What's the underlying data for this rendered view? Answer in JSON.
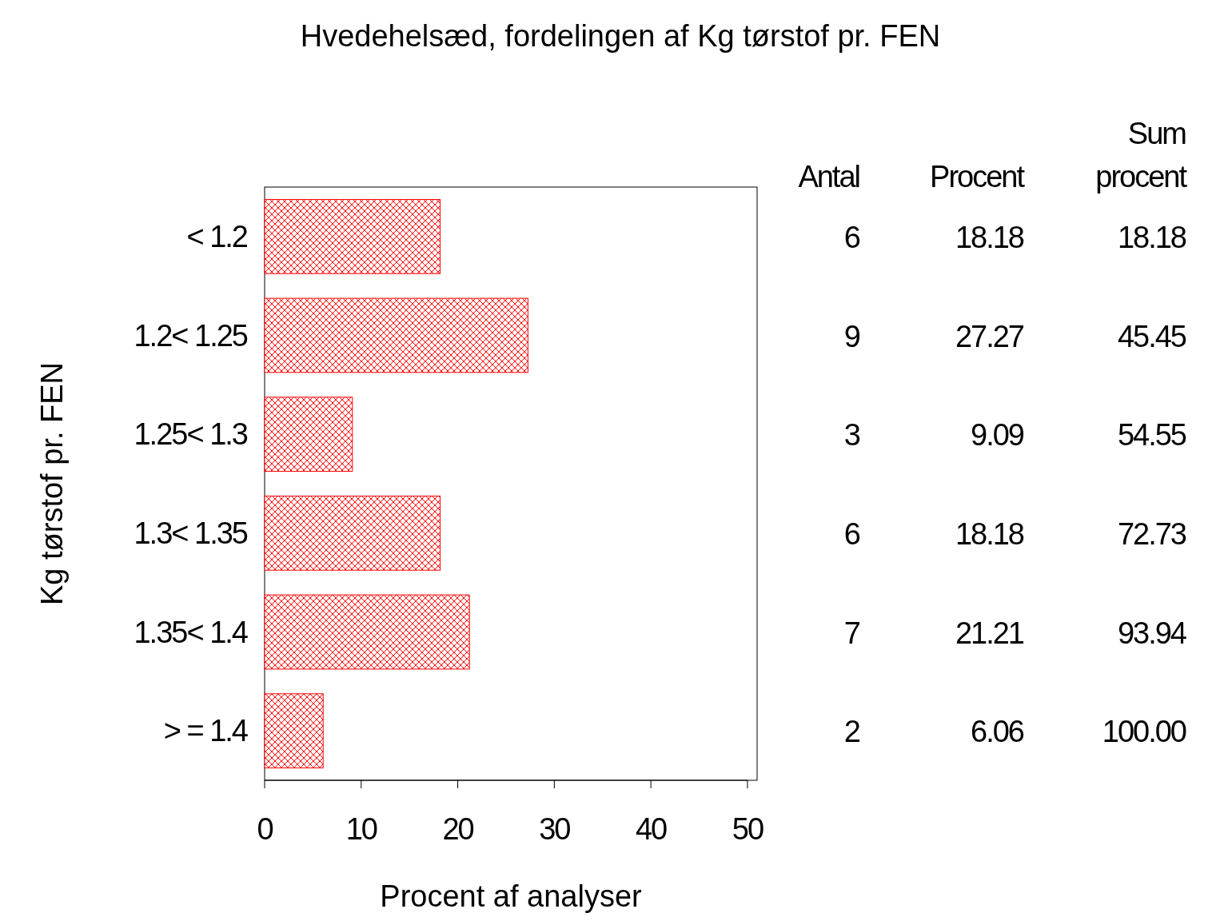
{
  "chart_data": {
    "type": "bar",
    "orientation": "horizontal",
    "title": "Hvedehelsæd, fordelingen af Kg tørstof pr. FEN",
    "xlabel": "Procent af analyser",
    "ylabel": "Kg tørstof pr. FEN",
    "categories": [
      "< 1.2",
      "1.2< 1.25",
      "1.25< 1.3",
      "1.3< 1.35",
      "1.35< 1.4",
      "> = 1.4"
    ],
    "values": [
      18.18,
      27.27,
      9.09,
      18.18,
      21.21,
      6.06
    ],
    "color": "#ff0000",
    "xlim": [
      0,
      51
    ],
    "xticks": [
      0,
      10,
      20,
      30,
      40,
      50
    ],
    "data_labels": true,
    "grid": false,
    "annotations": [
      "Antal",
      "Procent",
      "Sum procent",
      "6",
      "9",
      "3",
      "6",
      "7",
      "2",
      "18.18",
      "45.45",
      "54.55",
      "72.73",
      "93.94",
      "100.00"
    ]
  }
}
